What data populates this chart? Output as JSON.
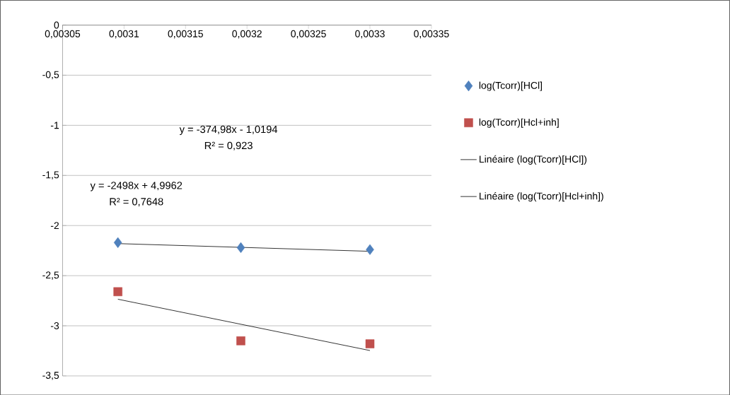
{
  "chart_data": {
    "type": "scatter",
    "grid": "y",
    "legend": "right",
    "xlim": [
      0.00305,
      0.00335
    ],
    "xticks": [
      {
        "value": 0.00305,
        "label": "0,00305"
      },
      {
        "value": 0.0031,
        "label": "0,0031"
      },
      {
        "value": 0.00315,
        "label": "0,00315"
      },
      {
        "value": 0.0032,
        "label": "0,0032"
      },
      {
        "value": 0.00325,
        "label": "0,00325"
      },
      {
        "value": 0.0033,
        "label": "0,0033"
      },
      {
        "value": 0.00335,
        "label": "0,00335"
      }
    ],
    "ylim": [
      -3.5,
      0
    ],
    "yticks": [
      0,
      {
        "value": -0.5,
        "label": "-0,5"
      },
      {
        "value": -1,
        "label": "-1"
      },
      {
        "value": -1.5,
        "label": "-1,5"
      },
      {
        "value": -2,
        "label": "-2"
      },
      {
        "value": -2.5,
        "label": "-2,5"
      },
      {
        "value": -3,
        "label": "-3"
      },
      {
        "value": -3.5,
        "label": "-3,5"
      }
    ],
    "x": [
      0.003095,
      0.003195,
      0.0033
    ],
    "series": [
      {
        "name": "log(Tcorr)[HCl]",
        "color": "#4f81bd",
        "marker": "diamond",
        "values": [
          -2.17,
          -2.22,
          -2.24
        ]
      },
      {
        "name": "log(Tcorr)[Hcl+inh]",
        "color": "#c0504d",
        "marker": "square",
        "values": [
          -2.66,
          -3.15,
          -3.18
        ]
      },
      {
        "name": "Linéaire (log(Tcorr)[HCl])",
        "type": "line",
        "color": "#000000",
        "marker": "none",
        "values": [
          -2.18,
          null,
          -2.257
        ]
      },
      {
        "name": "Linéaire (log(Tcorr)[Hcl+inh])",
        "type": "line",
        "color": "#000000",
        "marker": "none",
        "values": [
          -2.735,
          null,
          -3.247
        ]
      }
    ],
    "annotations": [
      "y = -374,98x - 1,0194",
      "R² = 0,923",
      "y = -2498x + 4,9962",
      "R² = 0,7648"
    ]
  }
}
